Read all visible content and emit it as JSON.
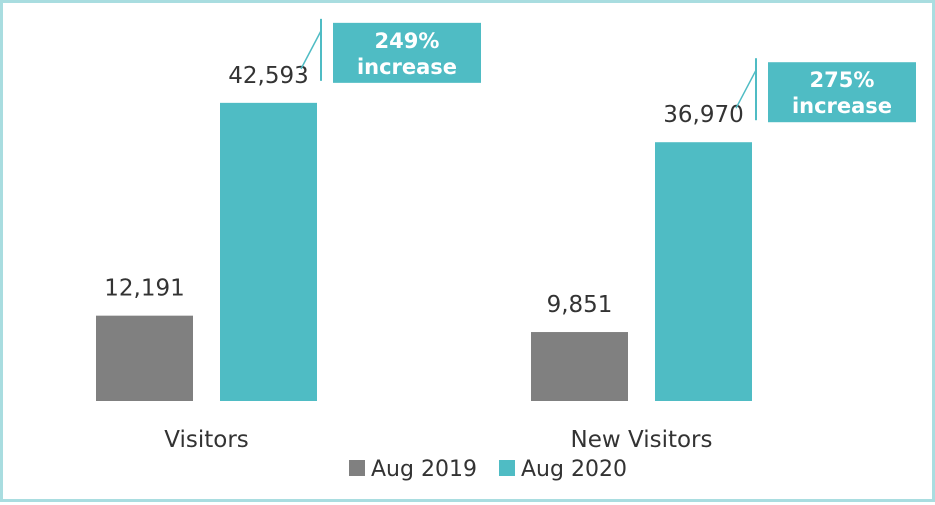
{
  "chart_data": {
    "type": "bar",
    "categories": [
      "Visitors",
      "New Visitors"
    ],
    "series": [
      {
        "name": "Aug 2019",
        "color": "#808080",
        "values": [
          12191,
          9851
        ],
        "labels": [
          "12,191",
          "9,851"
        ]
      },
      {
        "name": "Aug 2020",
        "color": "#4fbcc4",
        "values": [
          42593,
          36970
        ],
        "labels": [
          "42,593",
          "36,970"
        ]
      }
    ],
    "ylim": [
      0,
      50000
    ],
    "grid": false,
    "legend": "bottom",
    "annotations": [
      {
        "category": "Visitors",
        "line1": "249%",
        "line2": "increase"
      },
      {
        "category": "New Visitors",
        "line1": "275%",
        "line2": "increase"
      }
    ]
  }
}
